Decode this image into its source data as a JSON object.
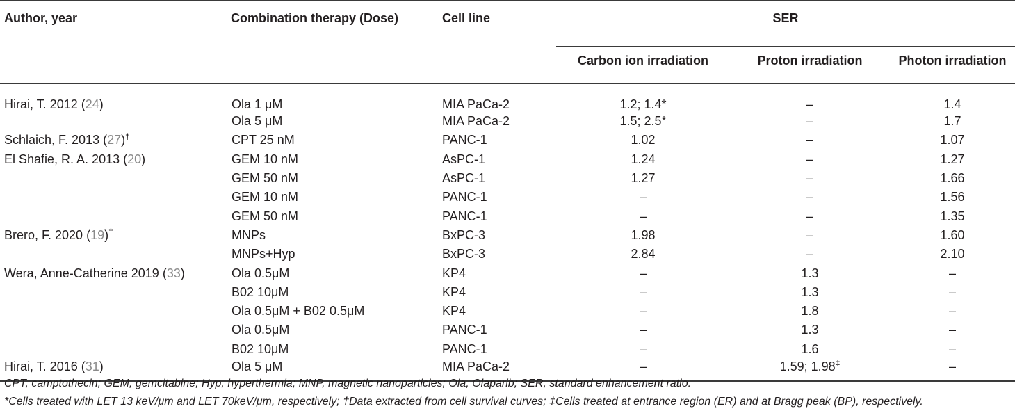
{
  "headers": {
    "author": "Author, year",
    "combination": "Combination therapy (Dose)",
    "cell_line": "Cell line",
    "ser": "SER",
    "carbon": "Carbon ion irradiation",
    "proton": "Proton irradiation",
    "photon": "Photon irradiation"
  },
  "rows": [
    {
      "author": "Hirai, T. 2012 (",
      "ref": "24",
      "close": ")",
      "mark": "",
      "therapy": "Ola 1 μM",
      "cell": "MIA PaCa-2",
      "carbon": "1.2; 1.4*",
      "proton": "–",
      "photon": "1.4"
    },
    {
      "author": "",
      "ref": "",
      "close": "",
      "mark": "",
      "therapy": "Ola 5 μM",
      "cell": "MIA PaCa-2",
      "carbon": "1.5; 2.5*",
      "proton": "–",
      "photon": "1.7"
    },
    {
      "author": "Schlaich, F. 2013 (",
      "ref": "27",
      "close": ")",
      "mark": "†",
      "therapy": "CPT 25 nM",
      "cell": "PANC-1",
      "carbon": "1.02",
      "proton": "–",
      "photon": "1.07"
    },
    {
      "author": "El Shafie, R. A. 2013 (",
      "ref": "20",
      "close": ")",
      "mark": "",
      "therapy": "GEM 10 nM",
      "cell": "AsPC-1",
      "carbon": "1.24",
      "proton": "–",
      "photon": "1.27"
    },
    {
      "author": "",
      "ref": "",
      "close": "",
      "mark": "",
      "therapy": "GEM 50 nM",
      "cell": "AsPC-1",
      "carbon": "1.27",
      "proton": "–",
      "photon": "1.66"
    },
    {
      "author": "",
      "ref": "",
      "close": "",
      "mark": "",
      "therapy": "GEM 10 nM",
      "cell": "PANC-1",
      "carbon": "–",
      "proton": "–",
      "photon": "1.56"
    },
    {
      "author": "",
      "ref": "",
      "close": "",
      "mark": "",
      "therapy": "GEM 50 nM",
      "cell": "PANC-1",
      "carbon": "–",
      "proton": "–",
      "photon": "1.35"
    },
    {
      "author": "Brero, F. 2020 (",
      "ref": "19",
      "close": ")",
      "mark": "†",
      "therapy": "MNPs",
      "cell": "BxPC-3",
      "carbon": "1.98",
      "proton": "–",
      "photon": "1.60"
    },
    {
      "author": "",
      "ref": "",
      "close": "",
      "mark": "",
      "therapy": "MNPs+Hyp",
      "cell": "BxPC-3",
      "carbon": "2.84",
      "proton": "–",
      "photon": "2.10"
    },
    {
      "author": "Wera, Anne-Catherine 2019 (",
      "ref": "33",
      "close": ")",
      "mark": "",
      "therapy": "Ola 0.5μM",
      "cell": "KP4",
      "carbon": "–",
      "proton": "1.3",
      "photon": "–"
    },
    {
      "author": "",
      "ref": "",
      "close": "",
      "mark": "",
      "therapy": "B02 10μM",
      "cell": "KP4",
      "carbon": "–",
      "proton": "1.3",
      "photon": "–"
    },
    {
      "author": "",
      "ref": "",
      "close": "",
      "mark": "",
      "therapy": "Ola 0.5μM + B02 0.5μM",
      "cell": "KP4",
      "carbon": "–",
      "proton": "1.8",
      "photon": "–"
    },
    {
      "author": "",
      "ref": "",
      "close": "",
      "mark": "",
      "therapy": "Ola 0.5μM",
      "cell": "PANC-1",
      "carbon": "–",
      "proton": "1.3",
      "photon": "–"
    },
    {
      "author": "",
      "ref": "",
      "close": "",
      "mark": "",
      "therapy": "B02 10μM",
      "cell": "PANC-1",
      "carbon": "–",
      "proton": "1.6",
      "photon": "–"
    },
    {
      "author": "Hirai, T. 2016 (",
      "ref": "31",
      "close": ")",
      "mark": "",
      "therapy": "Ola 5 μM",
      "cell": "MIA PaCa-2",
      "carbon": "–",
      "proton": "1.59; 1.98",
      "proton_mark": "‡",
      "photon": "–"
    }
  ],
  "footnotes": {
    "abbreviations": "CPT, camptothecin; GEM, gemcitabine; Hyp, hyperthermia; MNP, magnetic nanoparticles; Ola, Olaparib; SER, standard enhancement ratio.",
    "notes": "*Cells treated with LET 13 keV/μm and LET 70keV/μm, respectively; †Data extracted from cell survival curves; ‡Cells treated at entrance region (ER) and at Bragg peak (BP), respectively."
  },
  "colors": {
    "text": "#231f20",
    "reference_link": "#8a8a8a",
    "rule": "#3a3a3a"
  }
}
